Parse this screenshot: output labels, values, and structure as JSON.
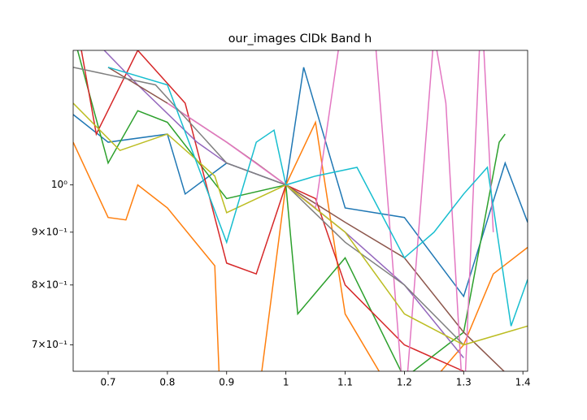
{
  "chart_data": {
    "type": "line",
    "title": "our_images ClDk Band h",
    "log_y": true,
    "xlim": [
      0.641,
      1.408
    ],
    "ylim": [
      0.66,
      1.35
    ],
    "xticks": [
      0.7,
      0.8,
      0.9,
      1.0,
      1.1,
      1.2,
      1.3,
      1.4
    ],
    "yticks": [
      {
        "value": 0.7,
        "label": "7×10⁻¹"
      },
      {
        "value": 0.8,
        "label": "8×10⁻¹"
      },
      {
        "value": 0.9,
        "label": "9×10⁻¹"
      },
      {
        "value": 1,
        "label": "10⁰"
      }
    ],
    "series": [
      {
        "color": "#1f77b4",
        "x": [
          0.641,
          0.7,
          0.8,
          0.83,
          0.9,
          1.0,
          1.03,
          1.1,
          1.2,
          1.3,
          1.37,
          1.408
        ],
        "values": [
          1.17,
          1.1,
          1.12,
          0.98,
          1.05,
          1.0,
          1.3,
          0.95,
          0.93,
          0.78,
          1.05,
          0.92
        ]
      },
      {
        "color": "#ff7f0e",
        "x": [
          0.641,
          0.7,
          0.73,
          0.75,
          0.8,
          0.88,
          0.89,
          0.95,
          1.0,
          1.05,
          1.1,
          1.2,
          1.3,
          1.35,
          1.408
        ],
        "values": [
          1.1,
          0.93,
          0.925,
          1.0,
          0.95,
          0.835,
          0.6,
          0.6,
          1.0,
          1.15,
          0.75,
          0.6,
          0.7,
          0.82,
          0.87
        ]
      },
      {
        "color": "#2ca02c",
        "x": [
          0.641,
          0.7,
          0.75,
          0.8,
          0.9,
          1.0,
          1.02,
          1.1,
          1.2,
          1.3,
          1.36,
          1.37
        ],
        "values": [
          1.4,
          1.05,
          1.18,
          1.15,
          0.97,
          1.0,
          0.75,
          0.85,
          0.65,
          0.72,
          1.1,
          1.12
        ]
      },
      {
        "color": "#d62728",
        "x": [
          0.65,
          0.68,
          0.75,
          0.83,
          0.9,
          0.95,
          1.0,
          1.05,
          1.1,
          1.2,
          1.3
        ],
        "values": [
          1.4,
          1.12,
          1.35,
          1.2,
          0.84,
          0.82,
          1.0,
          0.97,
          0.8,
          0.7,
          0.66
        ]
      },
      {
        "color": "#9467bd",
        "x": [
          0.641,
          0.75,
          0.85,
          0.9,
          1.0,
          1.1,
          1.2,
          1.3
        ],
        "values": [
          1.45,
          1.25,
          1.1,
          1.05,
          1.0,
          0.9,
          0.8,
          0.68
        ]
      },
      {
        "color": "#8c564b",
        "x": [
          0.7,
          0.8,
          0.9,
          0.95,
          1.0,
          1.1,
          1.2,
          1.3,
          1.38
        ],
        "values": [
          1.3,
          1.2,
          1.1,
          1.05,
          1.0,
          0.92,
          0.85,
          0.72,
          0.65
        ]
      },
      {
        "color": "#e377c2",
        "x": [
          0.8,
          0.9,
          1.0,
          1.05,
          1.1,
          1.15,
          1.2,
          1.25,
          1.27,
          1.3,
          1.33,
          1.35
        ],
        "values": [
          1.2,
          1.1,
          1.0,
          0.95,
          1.5,
          1.4,
          0.6,
          1.4,
          1.2,
          0.6,
          1.5,
          0.9
        ]
      },
      {
        "color": "#7f7f7f",
        "x": [
          0.641,
          0.78,
          0.9,
          1.0,
          1.1,
          1.2,
          1.3
        ],
        "values": [
          1.3,
          1.25,
          1.05,
          1.0,
          0.88,
          0.8,
          0.7
        ]
      },
      {
        "color": "#bcbd22",
        "x": [
          0.641,
          0.72,
          0.8,
          0.88,
          0.9,
          1.0,
          1.1,
          1.2,
          1.3,
          1.408
        ],
        "values": [
          1.2,
          1.08,
          1.12,
          1.02,
          0.94,
          1.0,
          0.9,
          0.75,
          0.7,
          0.73
        ]
      },
      {
        "color": "#17becf",
        "x": [
          0.7,
          0.8,
          0.9,
          0.95,
          0.98,
          1.0,
          1.05,
          1.12,
          1.2,
          1.25,
          1.3,
          1.34,
          1.38,
          1.408
        ],
        "values": [
          1.3,
          1.25,
          0.88,
          1.1,
          1.13,
          1.0,
          1.02,
          1.04,
          0.85,
          0.9,
          0.98,
          1.04,
          0.73,
          0.81
        ]
      }
    ]
  }
}
